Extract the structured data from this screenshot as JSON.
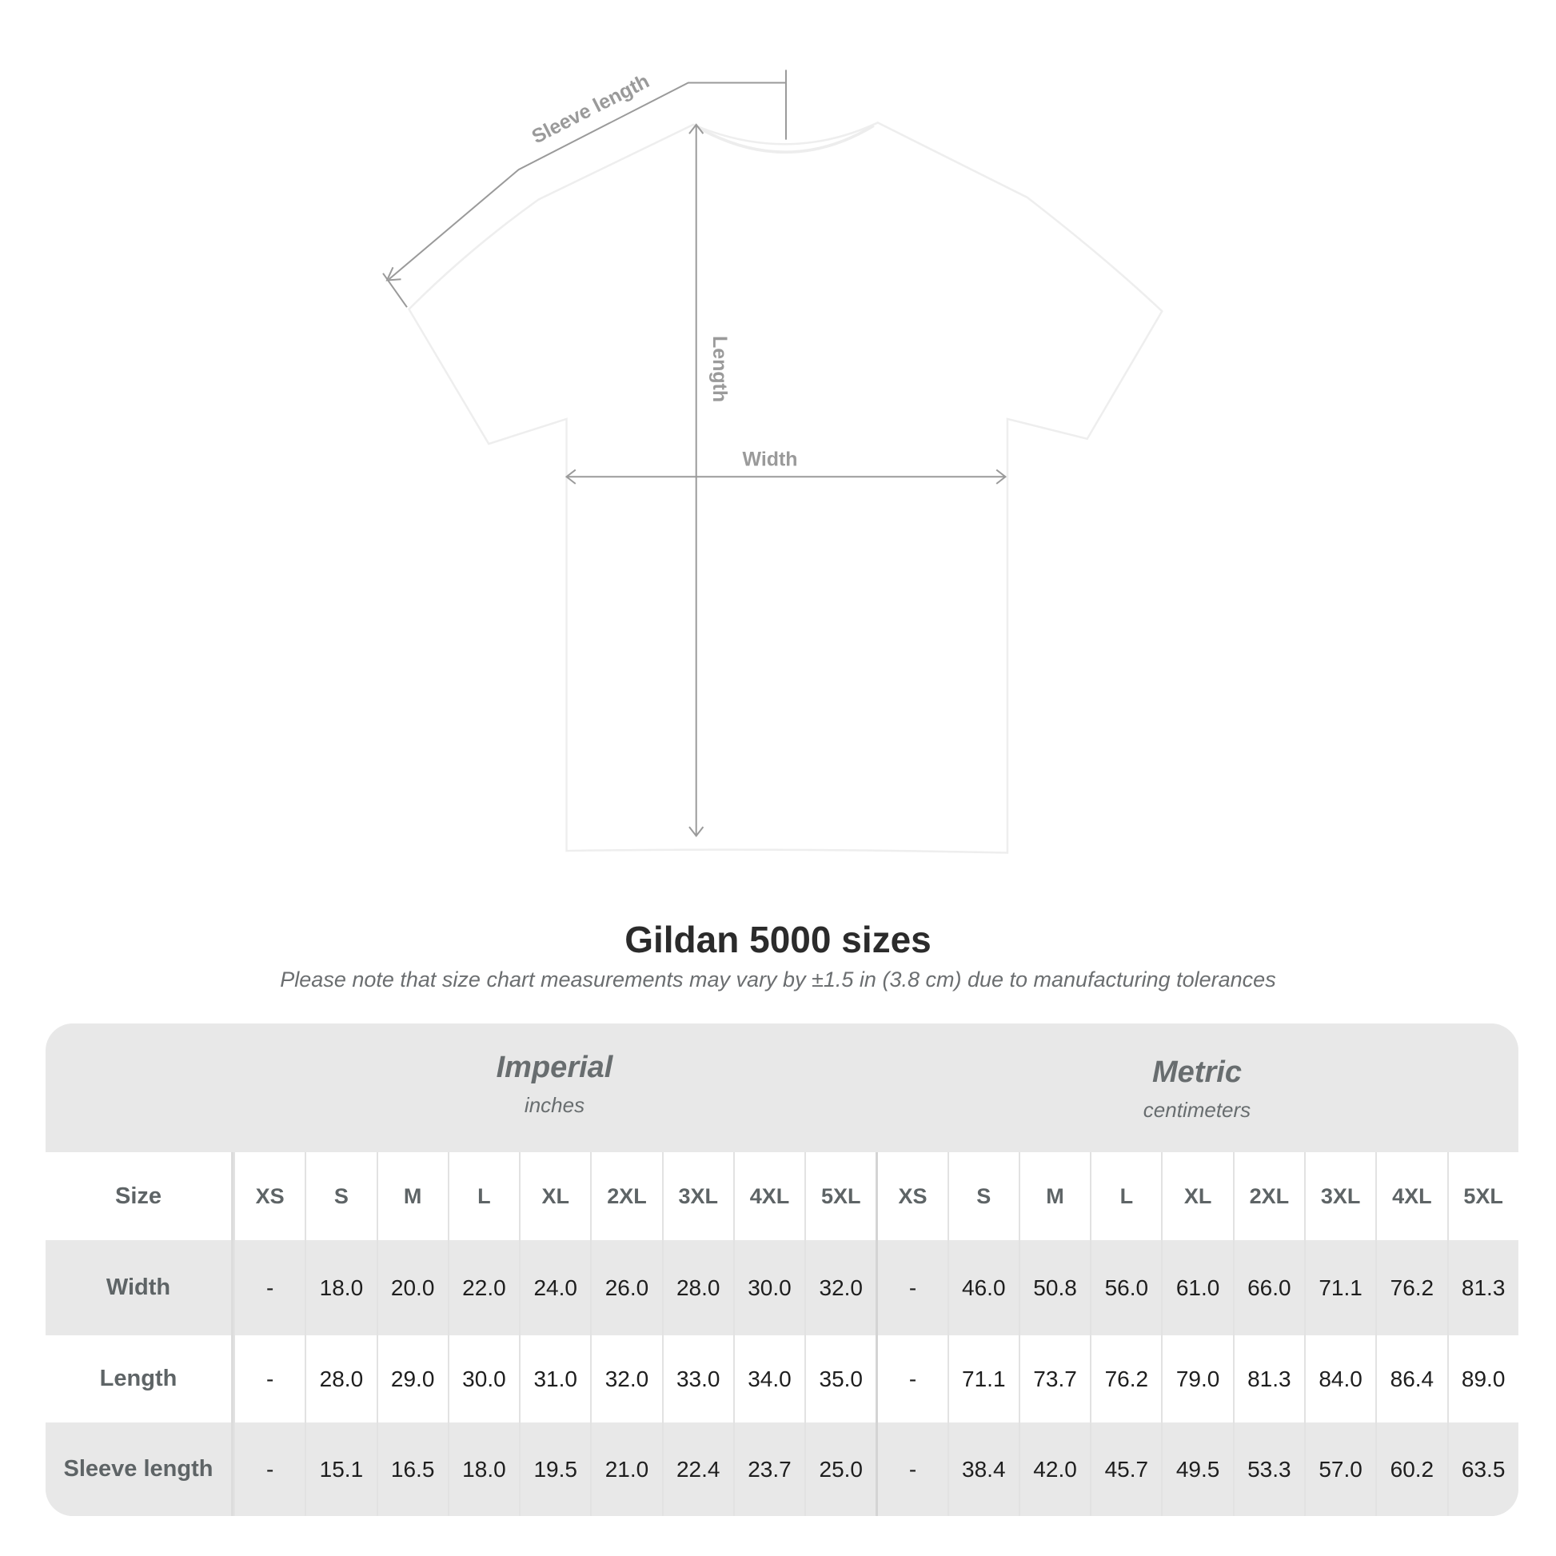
{
  "diagram": {
    "labels": {
      "sleeve": "Sleeve length",
      "length": "Length",
      "width": "Width"
    },
    "shirt_color": "#ffffff",
    "line_color": "#9a9a9a"
  },
  "heading": {
    "title": "Gildan 5000 sizes",
    "note": "Please note that size chart measurements may vary by ±1.5 in (3.8 cm) due to manufacturing tolerances"
  },
  "table": {
    "imperial": {
      "name": "Imperial",
      "unit": "inches"
    },
    "metric": {
      "name": "Metric",
      "unit": "centimeters"
    },
    "size_label": "Size",
    "sizes": [
      "XS",
      "S",
      "M",
      "L",
      "XL",
      "2XL",
      "3XL",
      "4XL",
      "5XL"
    ],
    "rows": [
      {
        "label": "Width",
        "imperial": [
          "-",
          "18.0",
          "20.0",
          "22.0",
          "24.0",
          "26.0",
          "28.0",
          "30.0",
          "32.0"
        ],
        "metric": [
          "-",
          "46.0",
          "50.8",
          "56.0",
          "61.0",
          "66.0",
          "71.1",
          "76.2",
          "81.3"
        ]
      },
      {
        "label": "Length",
        "imperial": [
          "-",
          "28.0",
          "29.0",
          "30.0",
          "31.0",
          "32.0",
          "33.0",
          "34.0",
          "35.0"
        ],
        "metric": [
          "-",
          "71.1",
          "73.7",
          "76.2",
          "79.0",
          "81.3",
          "84.0",
          "86.4",
          "89.0"
        ]
      },
      {
        "label": "Sleeve length",
        "imperial": [
          "-",
          "15.1",
          "16.5",
          "18.0",
          "19.5",
          "21.0",
          "22.4",
          "23.7",
          "25.0"
        ],
        "metric": [
          "-",
          "38.4",
          "42.0",
          "45.7",
          "49.5",
          "53.3",
          "57.0",
          "60.2",
          "63.5"
        ]
      }
    ]
  }
}
